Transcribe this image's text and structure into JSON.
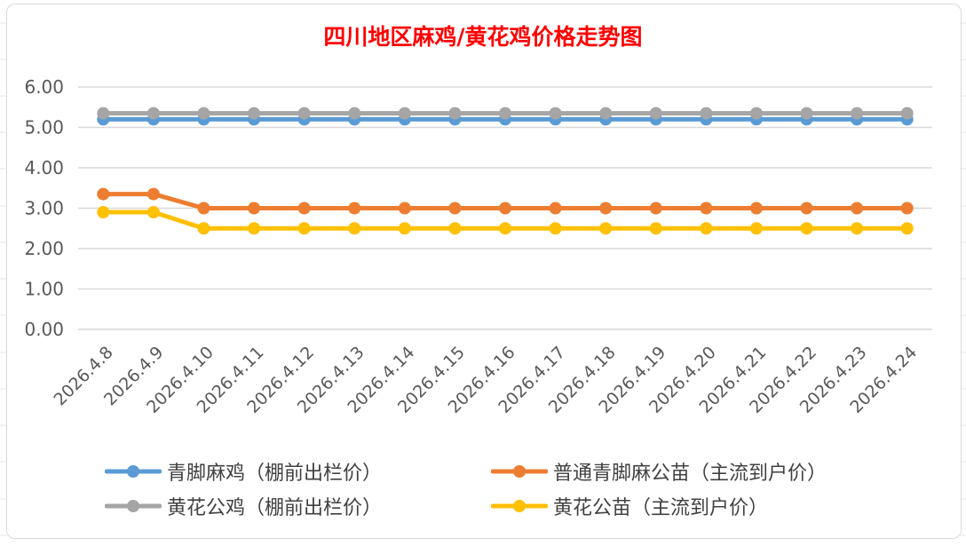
{
  "chart_data": {
    "type": "line",
    "title": "四川地区麻鸡/黄花鸡价格走势图",
    "xlabel": "",
    "ylabel": "",
    "ylim": [
      0,
      6
    ],
    "y_ticks": [
      "0.00",
      "1.00",
      "2.00",
      "3.00",
      "4.00",
      "5.00",
      "6.00"
    ],
    "grid": true,
    "legend_position": "bottom",
    "categories": [
      "2026.4.8",
      "2026.4.9",
      "2026.4.10",
      "2026.4.11",
      "2026.4.12",
      "2026.4.13",
      "2026.4.14",
      "2026.4.15",
      "2026.4.16",
      "2026.4.17",
      "2026.4.18",
      "2026.4.19",
      "2026.4.20",
      "2026.4.21",
      "2026.4.22",
      "2026.4.23",
      "2026.4.24"
    ],
    "series": [
      {
        "name": "青脚麻鸡（棚前出栏价）",
        "color": "#5b9bd5",
        "values": [
          5.2,
          5.2,
          5.2,
          5.2,
          5.2,
          5.2,
          5.2,
          5.2,
          5.2,
          5.2,
          5.2,
          5.2,
          5.2,
          5.2,
          5.2,
          5.2,
          5.2
        ]
      },
      {
        "name": "普通青脚麻公苗（主流到户价）",
        "color": "#ed7d31",
        "values": [
          3.35,
          3.35,
          3.0,
          3.0,
          3.0,
          3.0,
          3.0,
          3.0,
          3.0,
          3.0,
          3.0,
          3.0,
          3.0,
          3.0,
          3.0,
          3.0,
          3.0
        ]
      },
      {
        "name": "黄花公鸡（棚前出栏价）",
        "color": "#a5a5a5",
        "values": [
          5.35,
          5.35,
          5.35,
          5.35,
          5.35,
          5.35,
          5.35,
          5.35,
          5.35,
          5.35,
          5.35,
          5.35,
          5.35,
          5.35,
          5.35,
          5.35,
          5.35
        ]
      },
      {
        "name": "黄花公苗（主流到户价）",
        "color": "#ffc000",
        "values": [
          2.9,
          2.9,
          2.5,
          2.5,
          2.5,
          2.5,
          2.5,
          2.5,
          2.5,
          2.5,
          2.5,
          2.5,
          2.5,
          2.5,
          2.5,
          2.5,
          2.5
        ]
      }
    ]
  }
}
